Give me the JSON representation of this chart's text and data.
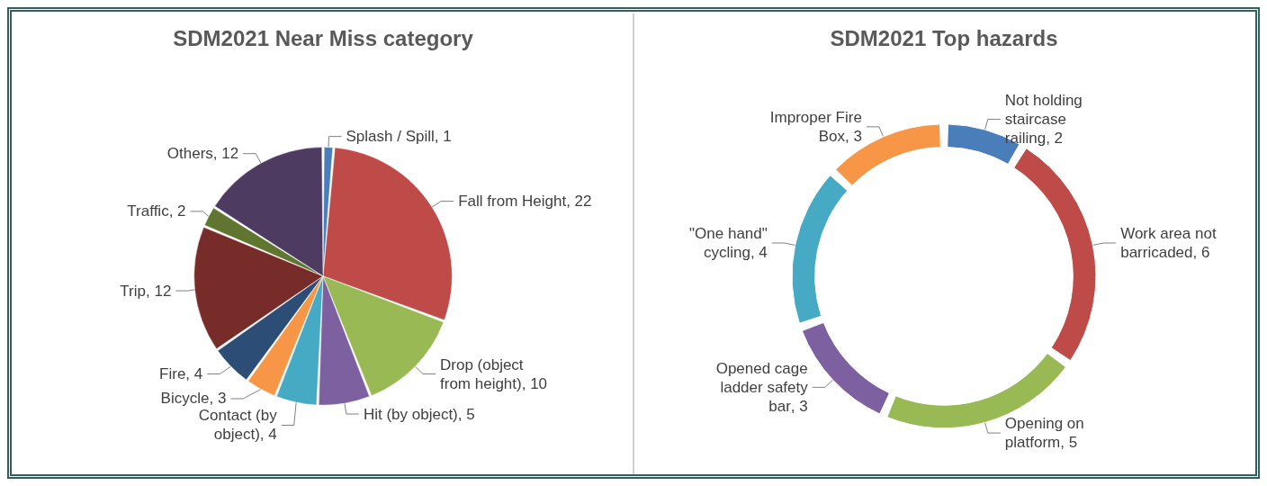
{
  "chart_data": [
    {
      "type": "pie",
      "title": "SDM2021 Near Miss category",
      "categories": [
        "Splash / Spill",
        "Fall from Height",
        "Drop (object from height)",
        "Hit (by object)",
        "Contact (by object)",
        "Bicycle",
        "Fire",
        "Trip",
        "Traffic",
        "Others"
      ],
      "values": [
        1,
        22,
        10,
        5,
        4,
        3,
        4,
        12,
        2,
        12
      ],
      "value_labels": [
        ", 1",
        ", 22",
        ", 10",
        ", 5",
        ", 4",
        ", 3",
        ", 4",
        ", 12",
        ", 2",
        ", 12"
      ],
      "colors": [
        "#4a7ebb",
        "#be4b48",
        "#98b954",
        "#7d60a0",
        "#46aac5",
        "#f79646",
        "#2c4d75",
        "#772c2a",
        "#5f7530",
        "#4d3b62"
      ],
      "data_labels": true,
      "legend": false
    },
    {
      "type": "donut",
      "title": "SDM2021 Top hazards",
      "categories": [
        "Not holding staircase railing",
        "Work area not barricaded",
        "Opening on platform",
        "Opened cage ladder safety bar",
        "\"One hand\" cycling",
        "Improper Fire Box"
      ],
      "values": [
        2,
        6,
        5,
        3,
        4,
        3
      ],
      "value_labels": [
        ", 2",
        ", 6",
        ", 5",
        ", 3",
        ", 4",
        ", 3"
      ],
      "colors": [
        "#4a7ebb",
        "#be4b48",
        "#98b954",
        "#7d60a0",
        "#46aac5",
        "#f79646"
      ],
      "data_labels": true,
      "legend": false
    }
  ]
}
